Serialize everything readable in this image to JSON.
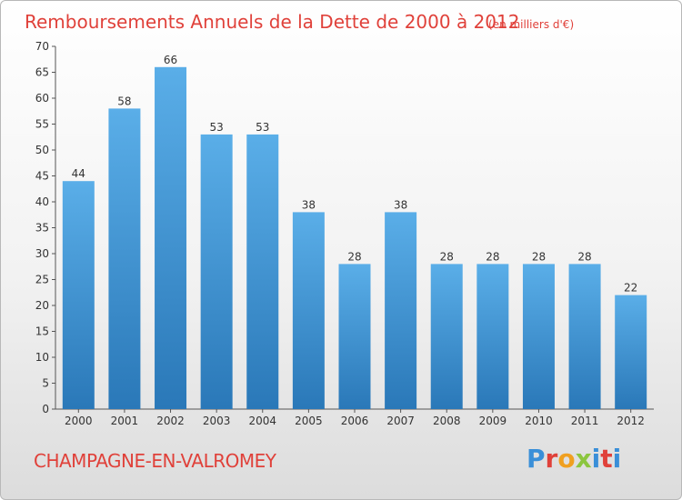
{
  "header": {
    "title": "Remboursements Annuels de la Dette de 2000 à 2012",
    "unit": "(en milliers d'€)"
  },
  "footer": {
    "city": "CHAMPAGNE-EN-VALROMEY",
    "logo_letters": [
      "P",
      "r",
      "o",
      "x",
      "i",
      "t",
      "i"
    ]
  },
  "colors": {
    "bar_top": "#5aaee8",
    "bar_bottom": "#2a78b8",
    "title": "#e0413a",
    "logo": [
      "#3a8fd8",
      "#e0413a",
      "#f0a020",
      "#8cc63f",
      "#3a8fd8",
      "#e0413a",
      "#3a8fd8"
    ]
  },
  "chart_data": {
    "type": "bar",
    "title": "Remboursements Annuels de la Dette de 2000 à 2012",
    "subtitle": "(en milliers d'€)",
    "categories": [
      "2000",
      "2001",
      "2002",
      "2003",
      "2004",
      "2005",
      "2006",
      "2007",
      "2008",
      "2009",
      "2010",
      "2011",
      "2012"
    ],
    "values": [
      44,
      58,
      66,
      53,
      53,
      38,
      28,
      38,
      28,
      28,
      28,
      28,
      22
    ],
    "data_labels": [
      "44",
      "58",
      "66",
      "53",
      "53",
      "38",
      "28",
      "38",
      "28",
      "28",
      "28",
      "28",
      "22"
    ],
    "ylim": [
      0,
      70
    ],
    "yticks": [
      0,
      5,
      10,
      15,
      20,
      25,
      30,
      35,
      40,
      45,
      50,
      55,
      60,
      65,
      70
    ],
    "grid": false,
    "legend": "none"
  }
}
